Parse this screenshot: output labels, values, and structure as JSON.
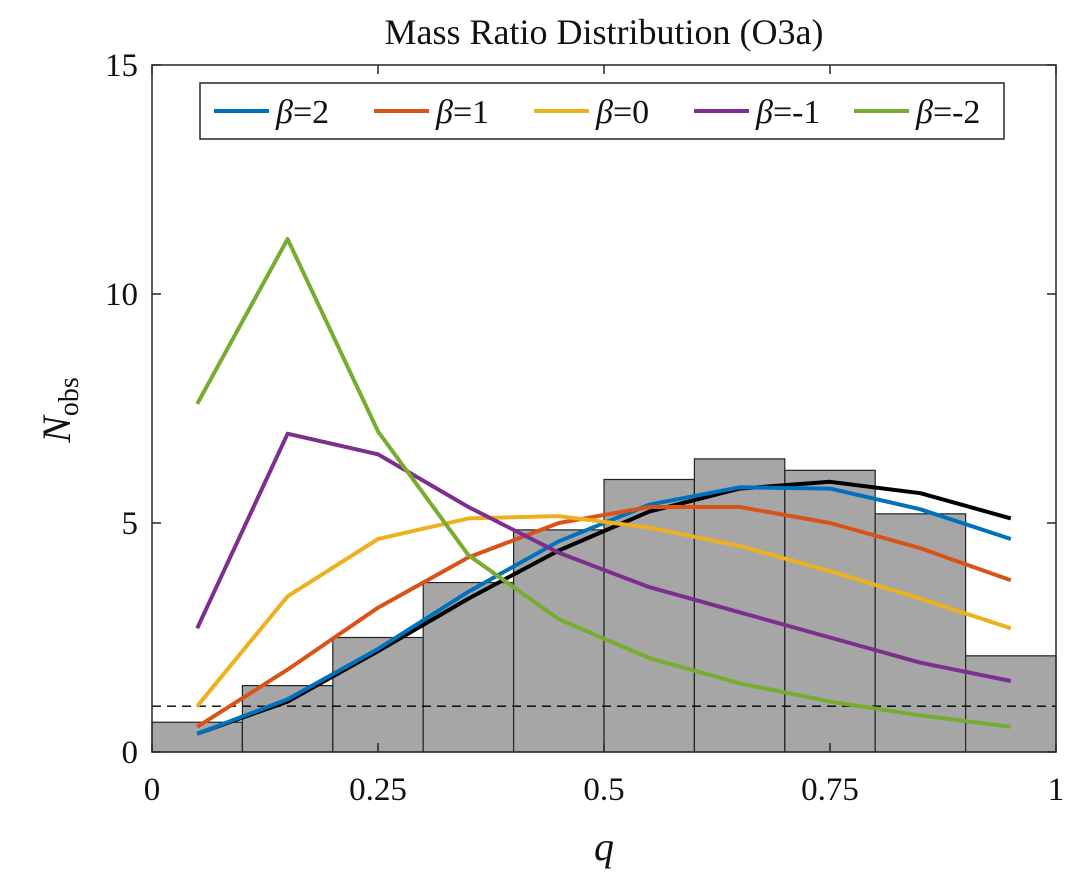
{
  "chart_data": {
    "type": "bar+line",
    "title": "Mass Ratio Distribution (O3a)",
    "xlabel": "q",
    "ylabel": {
      "main": "N",
      "subscript": "obs"
    },
    "xlim": [
      0,
      1
    ],
    "ylim": [
      0,
      15
    ],
    "xticks": [
      0,
      0.25,
      0.5,
      0.75,
      1
    ],
    "xtick_labels": [
      "0",
      "0.25",
      "0.5",
      "0.75",
      "1"
    ],
    "yticks": [
      0,
      5,
      10,
      15
    ],
    "ytick_labels": [
      "0",
      "5",
      "10",
      "15"
    ],
    "histogram": {
      "bin_edges": [
        0,
        0.1,
        0.2,
        0.3,
        0.4,
        0.5,
        0.6,
        0.7,
        0.8,
        0.9,
        1.0
      ],
      "counts": [
        0.65,
        1.45,
        2.5,
        3.7,
        4.85,
        5.95,
        6.4,
        6.15,
        5.2,
        2.1
      ],
      "color": "#a6a6a6",
      "edge_color": "#222222"
    },
    "x": [
      0.05,
      0.15,
      0.25,
      0.35,
      0.45,
      0.55,
      0.65,
      0.75,
      0.85,
      0.95
    ],
    "series": [
      {
        "name": "observed",
        "color": "#000000",
        "in_legend": false,
        "values": [
          0.4,
          1.1,
          2.2,
          3.35,
          4.4,
          5.25,
          5.75,
          5.9,
          5.65,
          5.1
        ]
      },
      {
        "name": "β=2",
        "symbol": "β",
        "suffix": "=2",
        "color": "#0072bd",
        "values": [
          0.4,
          1.15,
          2.25,
          3.5,
          4.6,
          5.4,
          5.78,
          5.75,
          5.3,
          4.65
        ]
      },
      {
        "name": "β=1",
        "symbol": "β",
        "suffix": "=1",
        "color": "#d95319",
        "values": [
          0.55,
          1.8,
          3.15,
          4.25,
          5.0,
          5.35,
          5.35,
          5.0,
          4.45,
          3.75
        ]
      },
      {
        "name": "β=0",
        "symbol": "β",
        "suffix": "=0",
        "color": "#edb120",
        "values": [
          1.0,
          3.4,
          4.65,
          5.1,
          5.15,
          4.9,
          4.5,
          3.95,
          3.35,
          2.7
        ]
      },
      {
        "name": "β=-1",
        "symbol": "β",
        "suffix": "=-1",
        "color": "#7e2f8e",
        "values": [
          2.7,
          6.95,
          6.5,
          5.35,
          4.35,
          3.6,
          3.05,
          2.5,
          1.95,
          1.55
        ]
      },
      {
        "name": "β=-2",
        "symbol": "β",
        "suffix": "=-2",
        "color": "#77ac30",
        "values": [
          7.6,
          11.2,
          7.0,
          4.3,
          2.9,
          2.05,
          1.5,
          1.1,
          0.8,
          0.55
        ]
      }
    ],
    "reference_line": {
      "y": 1,
      "style": "dashed",
      "color": "#000000"
    },
    "legend_position": "top",
    "grid": false
  }
}
